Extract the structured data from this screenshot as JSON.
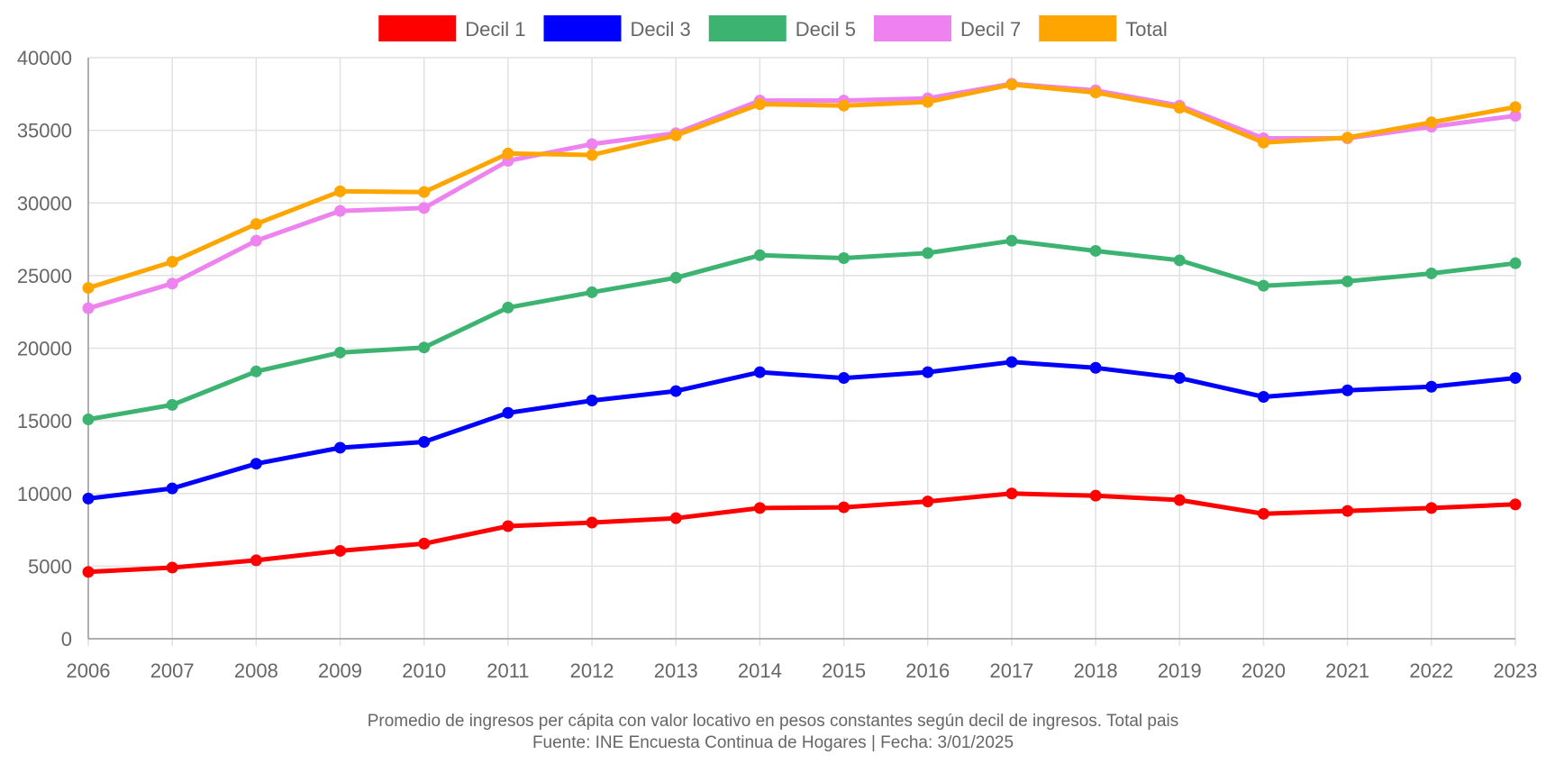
{
  "chart_data": {
    "type": "line",
    "categories": [
      "2006",
      "2007",
      "2008",
      "2009",
      "2010",
      "2011",
      "2012",
      "2013",
      "2014",
      "2015",
      "2016",
      "2017",
      "2018",
      "2019",
      "2020",
      "2021",
      "2022",
      "2023"
    ],
    "ylim": [
      0,
      40000
    ],
    "yticks": [
      0,
      5000,
      10000,
      15000,
      20000,
      25000,
      30000,
      35000,
      40000
    ],
    "grid": true,
    "legend_position": "top",
    "series": [
      {
        "name": "Decil 1",
        "color": "#ff0000",
        "values": [
          4600,
          4900,
          5400,
          6050,
          6550,
          7750,
          8000,
          8300,
          9000,
          9050,
          9450,
          10000,
          9850,
          9550,
          8600,
          8800,
          9000,
          9250
        ]
      },
      {
        "name": "Decil 3",
        "color": "#0000ff",
        "values": [
          9650,
          10350,
          12050,
          13150,
          13550,
          15550,
          16400,
          17050,
          18350,
          17950,
          18350,
          19050,
          18650,
          17950,
          16650,
          17100,
          17350,
          17950
        ]
      },
      {
        "name": "Decil 5",
        "color": "#3cb371",
        "values": [
          15100,
          16100,
          18400,
          19700,
          20050,
          22800,
          23850,
          24850,
          26400,
          26200,
          26550,
          27400,
          26700,
          26050,
          24300,
          24600,
          25150,
          25850
        ]
      },
      {
        "name": "Decil 7",
        "color": "#ee82ee",
        "values": [
          22750,
          24450,
          27400,
          29450,
          29650,
          32900,
          34050,
          34800,
          37050,
          37050,
          37200,
          38200,
          37750,
          36700,
          34450,
          34450,
          35250,
          36000
        ]
      },
      {
        "name": "Total",
        "color": "#ffa500",
        "values": [
          24150,
          25950,
          28550,
          30800,
          30750,
          33400,
          33300,
          34650,
          36800,
          36700,
          36950,
          38150,
          37600,
          36550,
          34150,
          34500,
          35550,
          36600
        ]
      }
    ]
  },
  "footer": {
    "caption": "Promedio de ingresos per cápita con valor locativo en pesos constantes según decil de ingresos. Total pais",
    "source": "Fuente: INE Encuesta Continua de Hogares | Fecha: 3/01/2025"
  }
}
